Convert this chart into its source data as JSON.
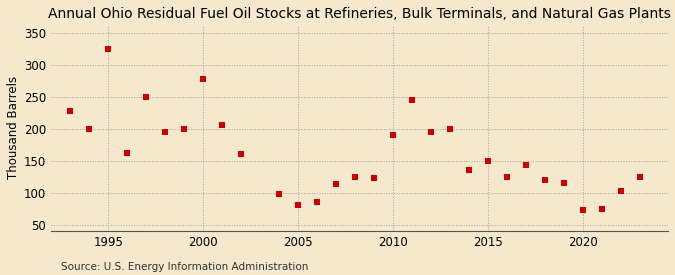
{
  "title": "Annual Ohio Residual Fuel Oil Stocks at Refineries, Bulk Terminals, and Natural Gas Plants",
  "ylabel": "Thousand Barrels",
  "source": "Source: U.S. Energy Information Administration",
  "years": [
    1993,
    1994,
    1995,
    1996,
    1997,
    1998,
    1999,
    2000,
    2001,
    2002,
    2003,
    2004,
    2005,
    2006,
    2007,
    2008,
    2009,
    2010,
    2011,
    2012,
    2013,
    2014,
    2015,
    2016,
    2017,
    2018,
    2019,
    2020,
    2021,
    2022,
    2023
  ],
  "values": [
    228,
    200,
    325,
    162,
    250,
    195,
    200,
    277,
    205,
    160,
    null,
    98,
    80,
    85,
    113,
    125,
    122,
    190,
    245,
    195,
    200,
    135,
    150,
    125,
    143,
    120,
    115,
    72,
    75,
    102,
    125
  ],
  "marker_color": "#cc0000",
  "bg_color": "#f5e8cc",
  "plot_bg_color": "#f5e8cc",
  "grid_color": "#999999",
  "ylim": [
    40,
    362
  ],
  "yticks": [
    50,
    100,
    150,
    200,
    250,
    300,
    350
  ],
  "xlim": [
    1992.0,
    2024.5
  ],
  "xticks": [
    1995,
    2000,
    2005,
    2010,
    2015,
    2020
  ],
  "title_fontsize": 10,
  "label_fontsize": 8.5,
  "source_fontsize": 7.5,
  "marker_size": 4.5
}
